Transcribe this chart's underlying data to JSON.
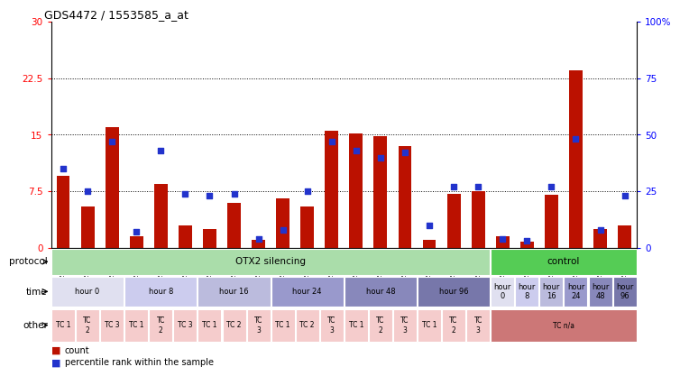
{
  "title": "GDS4472 / 1553585_a_at",
  "samples": [
    "GSM565176",
    "GSM565182",
    "GSM565188",
    "GSM565177",
    "GSM565183",
    "GSM565189",
    "GSM565178",
    "GSM565184",
    "GSM565190",
    "GSM565179",
    "GSM565185",
    "GSM565191",
    "GSM565180",
    "GSM565186",
    "GSM565192",
    "GSM565181",
    "GSM565187",
    "GSM565193",
    "GSM565194",
    "GSM565195",
    "GSM565196",
    "GSM565197",
    "GSM565198",
    "GSM565199"
  ],
  "counts": [
    9.5,
    5.5,
    16.0,
    1.5,
    8.5,
    3.0,
    2.5,
    6.0,
    1.0,
    6.5,
    5.5,
    15.5,
    15.2,
    14.8,
    13.5,
    1.0,
    7.2,
    7.5,
    1.5,
    0.8,
    7.0,
    23.5,
    2.5,
    3.0
  ],
  "percentiles": [
    35,
    25,
    47,
    7,
    43,
    24,
    23,
    24,
    4,
    8,
    25,
    47,
    43,
    40,
    42,
    10,
    27,
    27,
    4,
    3,
    27,
    48,
    8,
    23
  ],
  "bar_color": "#bb1100",
  "dot_color": "#2233cc",
  "ylim_left": [
    0,
    30
  ],
  "ylim_right": [
    0,
    100
  ],
  "yticks_left": [
    0,
    7.5,
    15,
    22.5,
    30
  ],
  "yticks_right": [
    0,
    25,
    50,
    75,
    100
  ],
  "ytick_labels_left": [
    "0",
    "7.5",
    "15",
    "22.5",
    "30"
  ],
  "ytick_labels_right": [
    "0",
    "25",
    "50",
    "75",
    "100%"
  ],
  "hlines": [
    7.5,
    15.0,
    22.5
  ],
  "protocol_segments": [
    {
      "text": "OTX2 silencing",
      "start": 0,
      "end": 18,
      "color": "#aaddaa"
    },
    {
      "text": "control",
      "start": 18,
      "end": 24,
      "color": "#55cc55"
    }
  ],
  "protocol_label": "protocol",
  "time_segments": [
    {
      "text": "hour 0",
      "start": 0,
      "end": 3,
      "color": "#e0e0f0"
    },
    {
      "text": "hour 8",
      "start": 3,
      "end": 6,
      "color": "#ccccee"
    },
    {
      "text": "hour 16",
      "start": 6,
      "end": 9,
      "color": "#bbbbdd"
    },
    {
      "text": "hour 24",
      "start": 9,
      "end": 12,
      "color": "#9999cc"
    },
    {
      "text": "hour 48",
      "start": 12,
      "end": 15,
      "color": "#8888bb"
    },
    {
      "text": "hour 96",
      "start": 15,
      "end": 18,
      "color": "#7777aa"
    },
    {
      "text": "hour\n0",
      "start": 18,
      "end": 19,
      "color": "#e0e0f0"
    },
    {
      "text": "hour\n8",
      "start": 19,
      "end": 20,
      "color": "#ccccee"
    },
    {
      "text": "hour\n16",
      "start": 20,
      "end": 21,
      "color": "#bbbbdd"
    },
    {
      "text": "hour\n24",
      "start": 21,
      "end": 22,
      "color": "#9999cc"
    },
    {
      "text": "hour\n48",
      "start": 22,
      "end": 23,
      "color": "#8888bb"
    },
    {
      "text": "hour\n96",
      "start": 23,
      "end": 24,
      "color": "#7777aa"
    }
  ],
  "time_label": "time",
  "other_segments": [
    {
      "text": "TC 1",
      "start": 0,
      "end": 1,
      "color": "#f5cccc"
    },
    {
      "text": "TC\n2",
      "start": 1,
      "end": 2,
      "color": "#f5cccc"
    },
    {
      "text": "TC 3",
      "start": 2,
      "end": 3,
      "color": "#f5cccc"
    },
    {
      "text": "TC 1",
      "start": 3,
      "end": 4,
      "color": "#f5cccc"
    },
    {
      "text": "TC\n2",
      "start": 4,
      "end": 5,
      "color": "#f5cccc"
    },
    {
      "text": "TC 3",
      "start": 5,
      "end": 6,
      "color": "#f5cccc"
    },
    {
      "text": "TC 1",
      "start": 6,
      "end": 7,
      "color": "#f5cccc"
    },
    {
      "text": "TC 2",
      "start": 7,
      "end": 8,
      "color": "#f5cccc"
    },
    {
      "text": "TC\n3",
      "start": 8,
      "end": 9,
      "color": "#f5cccc"
    },
    {
      "text": "TC 1",
      "start": 9,
      "end": 10,
      "color": "#f5cccc"
    },
    {
      "text": "TC 2",
      "start": 10,
      "end": 11,
      "color": "#f5cccc"
    },
    {
      "text": "TC\n3",
      "start": 11,
      "end": 12,
      "color": "#f5cccc"
    },
    {
      "text": "TC 1",
      "start": 12,
      "end": 13,
      "color": "#f5cccc"
    },
    {
      "text": "TC\n2",
      "start": 13,
      "end": 14,
      "color": "#f5cccc"
    },
    {
      "text": "TC\n3",
      "start": 14,
      "end": 15,
      "color": "#f5cccc"
    },
    {
      "text": "TC 1",
      "start": 15,
      "end": 16,
      "color": "#f5cccc"
    },
    {
      "text": "TC\n2",
      "start": 16,
      "end": 17,
      "color": "#f5cccc"
    },
    {
      "text": "TC\n3",
      "start": 17,
      "end": 18,
      "color": "#f5cccc"
    },
    {
      "text": "TC n/a",
      "start": 18,
      "end": 24,
      "color": "#cc7777"
    }
  ],
  "other_label": "other",
  "bg_color": "#ffffff"
}
